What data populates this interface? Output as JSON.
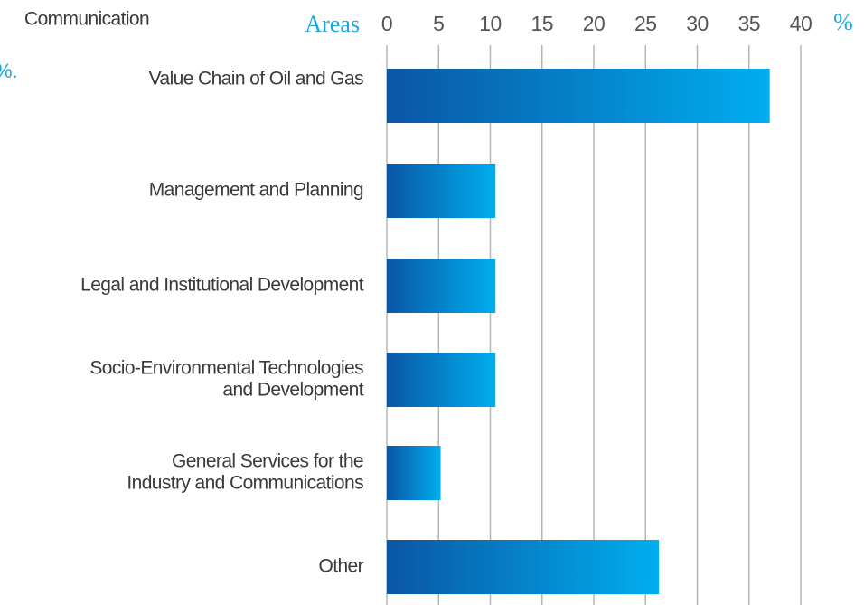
{
  "chart_data": {
    "type": "bar",
    "orientation": "horizontal",
    "annotations": [
      "Communication",
      "%."
    ],
    "y_label": "Areas",
    "x_unit": "%",
    "categories": [
      [
        "Value Chain of Oil and Gas"
      ],
      [
        "Management and Planning"
      ],
      [
        "Legal and Institutional Development"
      ],
      [
        "Socio-Environmental Technologies",
        "and Development"
      ],
      [
        "General Services for the",
        "Industry and Communications"
      ],
      [
        "Other"
      ]
    ],
    "values": [
      37,
      10.5,
      10.5,
      10.5,
      5.2,
      26.3
    ],
    "color": [
      "#0a56a4",
      "#00aeef"
    ],
    "xlim": [
      0,
      40
    ],
    "xticks": [
      0,
      5,
      10,
      15,
      20,
      25,
      30,
      35,
      40
    ],
    "grid": true
  }
}
